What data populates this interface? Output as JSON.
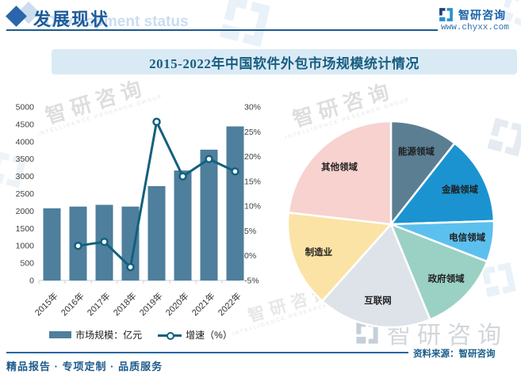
{
  "header": {
    "section_title": "发展现状",
    "section_subtitle": "Development status",
    "brand": {
      "name": "智研咨询",
      "url": "www.chyxx.com"
    }
  },
  "main": {
    "title": "2015-2022年中国软件外包市场规模统计情况"
  },
  "chart_data": [
    {
      "type": "bar",
      "title": "2015-2022年中国软件外包市场规模统计情况",
      "categories": [
        "2015年",
        "2016年",
        "2017年",
        "2018年",
        "2019年",
        "2020年",
        "2021年",
        "2022年"
      ],
      "series": [
        {
          "name": "市场规模：亿元",
          "type": "bar",
          "axis": "left",
          "color": "#4e7f9c",
          "values": [
            2080,
            2130,
            2180,
            2130,
            2720,
            3170,
            3770,
            4440
          ]
        },
        {
          "name": "增速（%）",
          "type": "line",
          "axis": "right",
          "color": "#12607f",
          "marker": "open-circle",
          "values": [
            null,
            2,
            2.8,
            -2.3,
            27,
            16,
            19.5,
            17
          ]
        }
      ],
      "left_axis": {
        "min": 0,
        "max": 5000,
        "step": 500,
        "suffix": ""
      },
      "right_axis": {
        "min": -5,
        "max": 30,
        "step": 5,
        "suffix": "%"
      },
      "grid": false,
      "legend_position": "bottom"
    },
    {
      "type": "pie",
      "labels": [
        "能源领域",
        "金融领域",
        "电信领域",
        "政府领域",
        "互联网",
        "制造业",
        "其他领域"
      ],
      "values": [
        10.6,
        13.9,
        6.4,
        12.9,
        17.8,
        15.2,
        23.2
      ],
      "colors": [
        "#5b7e93",
        "#1b93d1",
        "#5cc0ee",
        "#9bd0c5",
        "#dde3e9",
        "#fbe3a5",
        "#f7d2cf"
      ],
      "start_angle_deg": 0,
      "direction": "clockwise",
      "label_position": "inside"
    }
  ],
  "source": {
    "text": "资料来源：智研咨询"
  },
  "footer": {
    "tagline": "精品报告 · 专项定制 · 品质服务"
  },
  "watermark": {
    "logo_text": "智研咨询",
    "subtext": "INTELLIGENCE RESEARCH GROUP"
  },
  "theme": {
    "accent_blue": "#1d5b99",
    "title_color": "#175e80",
    "banner_bg": "#d9eaf5"
  }
}
